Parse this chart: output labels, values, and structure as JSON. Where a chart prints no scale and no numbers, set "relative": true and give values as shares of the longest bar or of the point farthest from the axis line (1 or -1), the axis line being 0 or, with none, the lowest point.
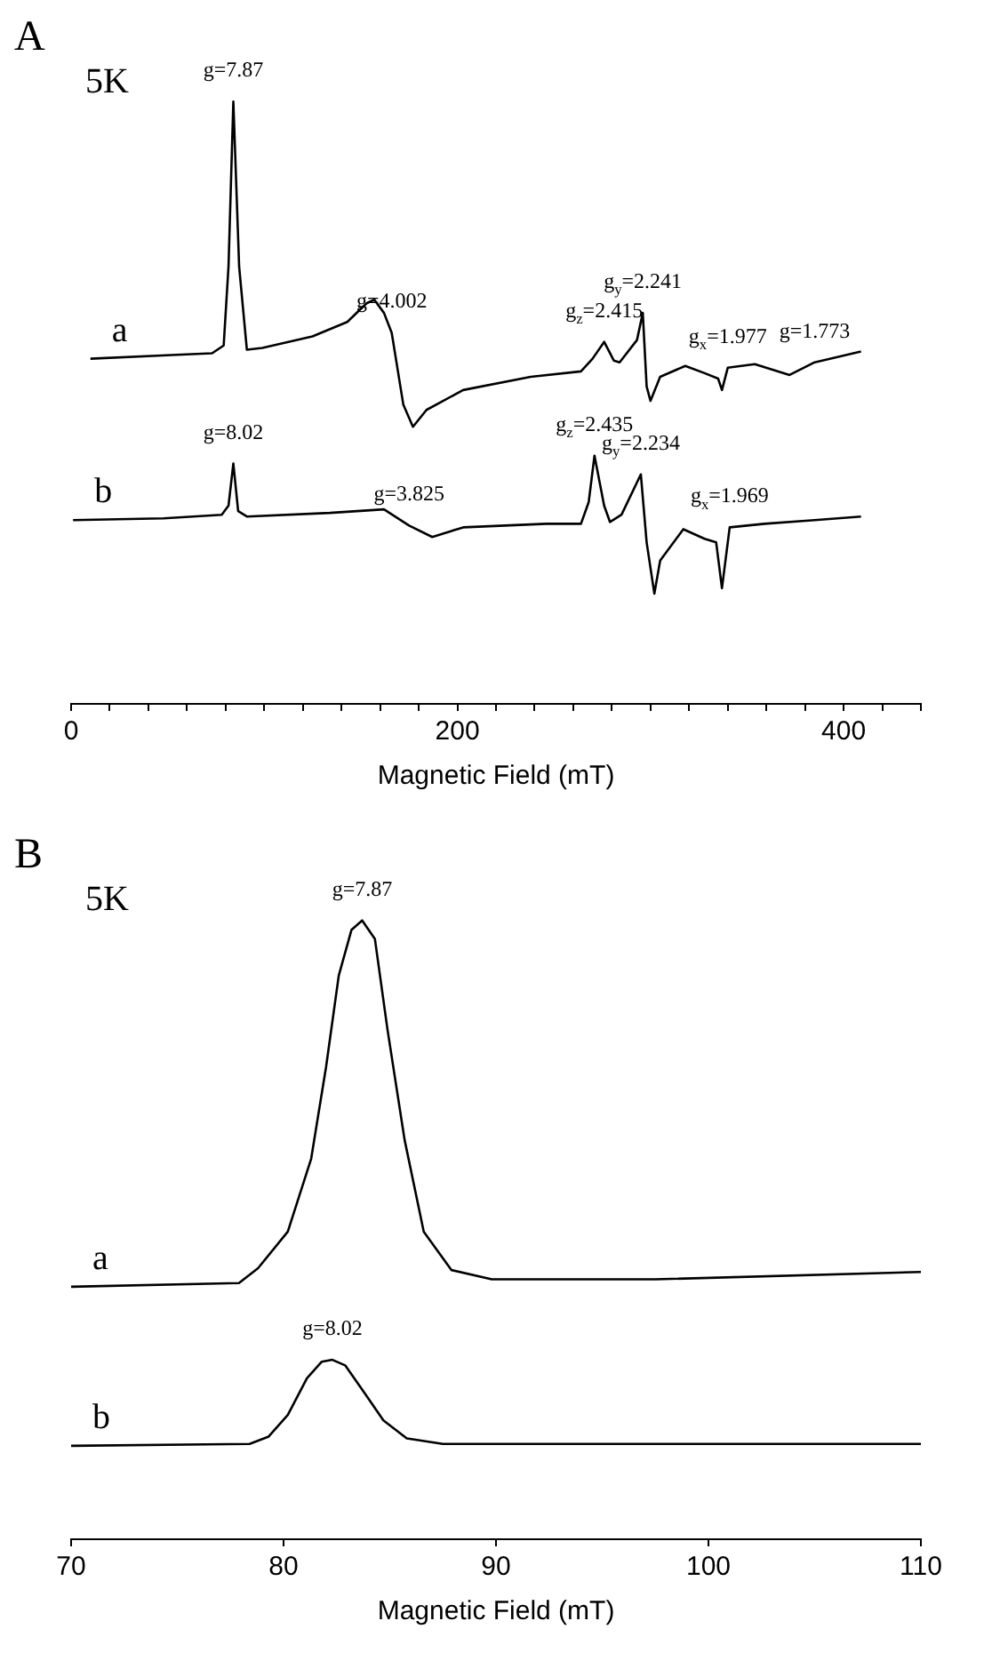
{
  "chart_data": [
    {
      "type": "line",
      "title": "A",
      "xlabel": "Magnetic Field (mT)",
      "relative": true,
      "xlim": [
        0,
        440
      ],
      "xticks": [
        0,
        {
          "value": 20,
          "label": null
        },
        {
          "value": 40,
          "label": null
        },
        {
          "value": 60,
          "label": null
        },
        {
          "value": 80,
          "label": null
        },
        {
          "value": 100,
          "label": null
        },
        {
          "value": 120,
          "label": null
        },
        {
          "value": 140,
          "label": null
        },
        {
          "value": 160,
          "label": null
        },
        {
          "value": 180,
          "label": null
        },
        200,
        {
          "value": 220,
          "label": null
        },
        {
          "value": 240,
          "label": null
        },
        {
          "value": 260,
          "label": null
        },
        {
          "value": 280,
          "label": null
        },
        {
          "value": 300,
          "label": null
        },
        {
          "value": 320,
          "label": null
        },
        {
          "value": 340,
          "label": null
        },
        {
          "value": 360,
          "label": null
        },
        {
          "value": 380,
          "label": null
        },
        400,
        {
          "value": 420,
          "label": null
        },
        {
          "value": 440,
          "label": null
        }
      ],
      "series": [
        {
          "name": "a",
          "color": "#000000",
          "x": [
            10,
            52,
            73,
            79,
            81.5,
            84,
            87,
            91,
            99,
            125,
            143,
            153,
            157,
            162,
            166,
            172,
            177,
            184,
            203,
            238,
            264,
            270,
            276,
            281,
            284,
            293,
            296,
            298,
            300,
            305,
            318,
            328,
            335,
            337,
            340,
            354,
            372,
            385,
            409
          ],
          "values": [
            0.573,
            0.579,
            0.582,
            0.595,
            0.726,
            1.0,
            0.726,
            0.588,
            0.591,
            0.61,
            0.634,
            0.665,
            0.671,
            0.649,
            0.616,
            0.497,
            0.46,
            0.488,
            0.521,
            0.543,
            0.552,
            0.573,
            0.601,
            0.57,
            0.567,
            0.604,
            0.649,
            0.527,
            0.503,
            0.543,
            0.561,
            0.549,
            0.54,
            0.521,
            0.558,
            0.564,
            0.546,
            0.567,
            0.585
          ]
        },
        {
          "name": "b",
          "color": "#000000",
          "x": [
            1,
            48,
            78,
            81.5,
            84,
            86.5,
            91,
            134,
            162,
            175,
            187,
            203,
            246,
            264,
            268,
            271,
            276,
            279,
            285,
            295,
            298,
            302,
            305,
            317,
            328,
            334,
            337,
            341,
            359,
            385,
            409
          ],
          "values": [
            0.305,
            0.308,
            0.314,
            0.329,
            0.399,
            0.32,
            0.311,
            0.317,
            0.323,
            0.296,
            0.277,
            0.293,
            0.299,
            0.299,
            0.335,
            0.412,
            0.329,
            0.302,
            0.314,
            0.381,
            0.268,
            0.183,
            0.238,
            0.29,
            0.274,
            0.268,
            0.192,
            0.293,
            0.299,
            0.305,
            0.311
          ]
        }
      ],
      "annotations": [
        "5K",
        {
          "text": "g=7.87",
          "x": 84,
          "y": 1.0
        },
        {
          "text": "g=4.002",
          "x": 166,
          "y": 0.616
        },
        {
          "text": "g$_{z}$=2.415",
          "x": 276,
          "y": 0.601
        },
        {
          "text": "g$_{y}$=2.241",
          "x": 296,
          "y": 0.649
        },
        {
          "text": "g$_{x}$=1.977",
          "x": 340,
          "y": 0.558
        },
        {
          "text": "g=1.773",
          "x": 385,
          "y": 0.567
        },
        {
          "text": "g=8.02",
          "x": 84,
          "y": 0.399
        },
        {
          "text": "g=3.825",
          "x": 175,
          "y": 0.296
        },
        {
          "text": "g$_{z}$=2.435",
          "x": 271,
          "y": 0.412
        },
        {
          "text": "g$_{y}$=2.234",
          "x": 295,
          "y": 0.381
        },
        {
          "text": "g$_{x}$=1.969",
          "x": 341,
          "y": 0.293
        }
      ]
    },
    {
      "type": "line",
      "title": "B",
      "xlabel": "Magnetic Field (mT)",
      "relative": true,
      "xlim": [
        70,
        110
      ],
      "xticks": [
        70,
        80,
        90,
        100,
        110
      ],
      "series": [
        {
          "name": "a",
          "color": "#000000",
          "x": [
            70,
            77.9,
            78.8,
            80.2,
            81.3,
            82.0,
            82.6,
            83.2,
            83.7,
            84.3,
            84.9,
            85.7,
            86.6,
            87.9,
            89.8,
            97.5,
            110
          ],
          "values": [
            0.408,
            0.414,
            0.438,
            0.497,
            0.615,
            0.763,
            0.911,
            0.985,
            1.0,
            0.97,
            0.822,
            0.645,
            0.497,
            0.435,
            0.42,
            0.42,
            0.432
          ]
        },
        {
          "name": "b",
          "color": "#000000",
          "x": [
            70,
            78.4,
            79.3,
            80.2,
            81.1,
            81.8,
            82.3,
            82.9,
            83.8,
            84.7,
            85.8,
            87.5,
            93.0,
            110
          ],
          "values": [
            0.151,
            0.154,
            0.166,
            0.201,
            0.26,
            0.287,
            0.29,
            0.281,
            0.237,
            0.192,
            0.163,
            0.154,
            0.154,
            0.154
          ]
        }
      ],
      "annotations": [
        "5K",
        {
          "text": "g=7.87",
          "x": 83.7,
          "y": 1.0
        },
        {
          "text": "g=8.02",
          "x": 82.3,
          "y": 0.29
        }
      ]
    }
  ]
}
